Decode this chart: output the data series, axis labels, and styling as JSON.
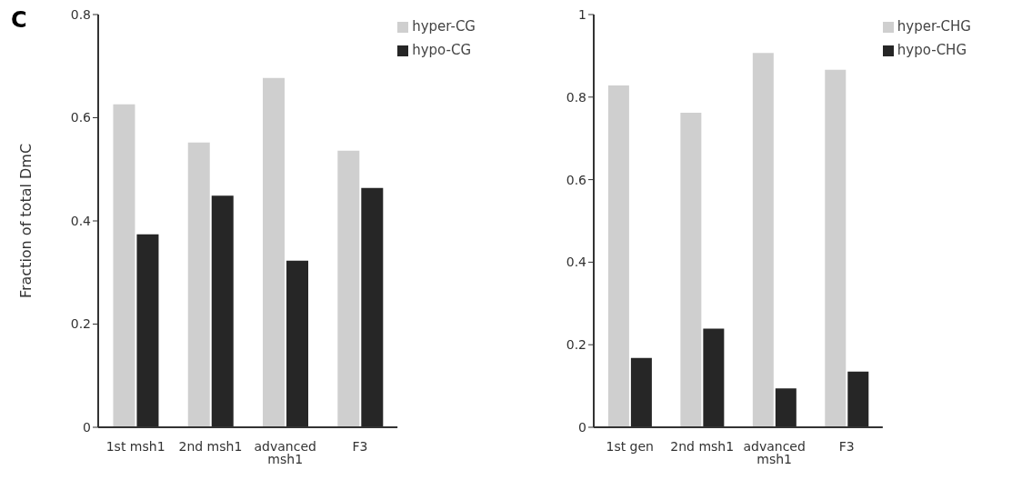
{
  "chart_data": [
    {
      "type": "bar",
      "annotations": [
        "C"
      ],
      "ylabel": "Fraction of total DmC",
      "categories": [
        "1st msh1",
        "2nd msh1",
        "advanced msh1",
        "F3"
      ],
      "series": [
        {
          "name": "hyper-CG",
          "color": "#cfcfcf",
          "values": [
            0.626,
            0.552,
            0.677,
            0.536
          ]
        },
        {
          "name": "hypo-CG",
          "color": "#262626",
          "values": [
            0.374,
            0.449,
            0.323,
            0.464
          ]
        }
      ],
      "ylim": [
        0,
        0.8
      ],
      "yticks": [
        0,
        0.2,
        0.4,
        0.6,
        0.8
      ],
      "grid": false,
      "legend": "top right"
    },
    {
      "type": "bar",
      "categories": [
        "1st gen",
        "2nd msh1",
        "advanced msh1",
        "F3"
      ],
      "series": [
        {
          "name": "hyper-CHG",
          "color": "#cfcfcf",
          "values": [
            0.828,
            0.762,
            0.907,
            0.866
          ]
        },
        {
          "name": "hypo-CHG",
          "color": "#262626",
          "values": [
            0.168,
            0.239,
            0.094,
            0.135
          ]
        }
      ],
      "ylim": [
        0,
        1
      ],
      "yticks": [
        0,
        0.2,
        0.4,
        0.6,
        0.8,
        1
      ],
      "grid": false,
      "legend": "top right"
    }
  ]
}
